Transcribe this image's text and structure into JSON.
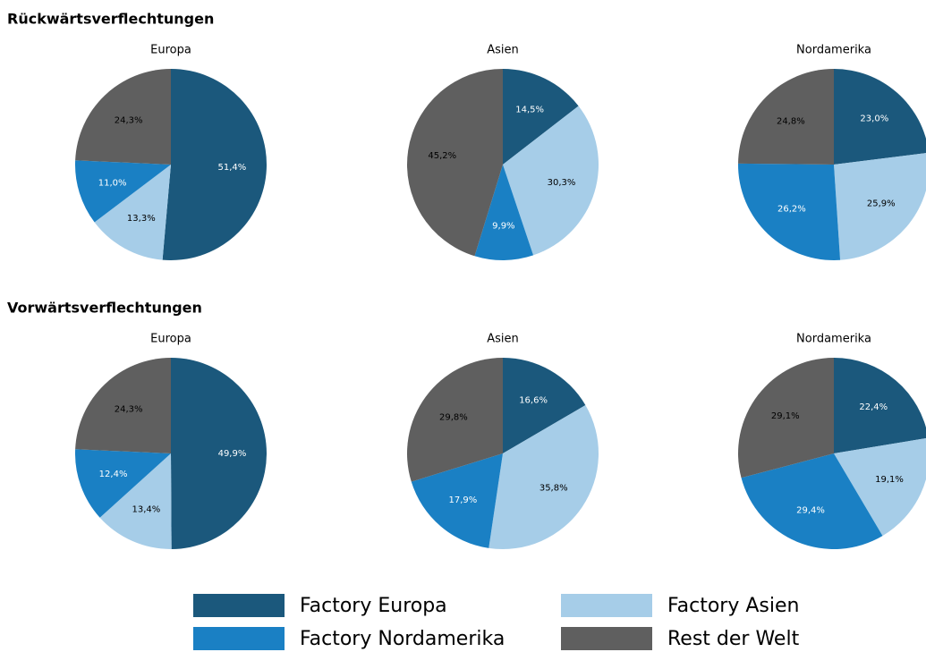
{
  "sections": [
    "Rückwärtsverflechtungen",
    "Vorwärtsverflechtungen"
  ],
  "legend": {
    "labels": [
      "Factory Europa",
      "Factory Asien",
      "Factory Nordamerika",
      "Rest der Welt"
    ],
    "colors": [
      "#1b587c",
      "#a6cde8",
      "#1a80c4",
      "#5f5f5f"
    ]
  },
  "chart_data": [
    {
      "type": "pie",
      "title": "Europa",
      "values": [
        51.4,
        13.3,
        11.0,
        24.3
      ],
      "value_labels": [
        "51,4%",
        "13,3%",
        "11,0%",
        "24,3%"
      ]
    },
    {
      "type": "pie",
      "title": "Asien",
      "values": [
        14.5,
        30.3,
        9.9,
        45.2
      ],
      "value_labels": [
        "14,5%",
        "30,3%",
        "9,9%",
        "45,2%"
      ]
    },
    {
      "type": "pie",
      "title": "Nordamerika",
      "values": [
        23.0,
        25.9,
        26.2,
        24.8
      ],
      "value_labels": [
        "23,0%",
        "25,9%",
        "26,2%",
        "24,8%"
      ]
    },
    {
      "type": "pie",
      "title": "Europa",
      "values": [
        49.9,
        13.4,
        12.4,
        24.3
      ],
      "value_labels": [
        "49,9%",
        "13,4%",
        "12,4%",
        "24,3%"
      ]
    },
    {
      "type": "pie",
      "title": "Asien",
      "values": [
        16.6,
        35.8,
        17.9,
        29.8
      ],
      "value_labels": [
        "16,6%",
        "35,8%",
        "17,9%",
        "29,8%"
      ]
    },
    {
      "type": "pie",
      "title": "Nordamerika",
      "values": [
        22.4,
        19.1,
        29.4,
        29.1
      ],
      "value_labels": [
        "22,4%",
        "19,1%",
        "29,4%",
        "29,1%"
      ]
    }
  ]
}
